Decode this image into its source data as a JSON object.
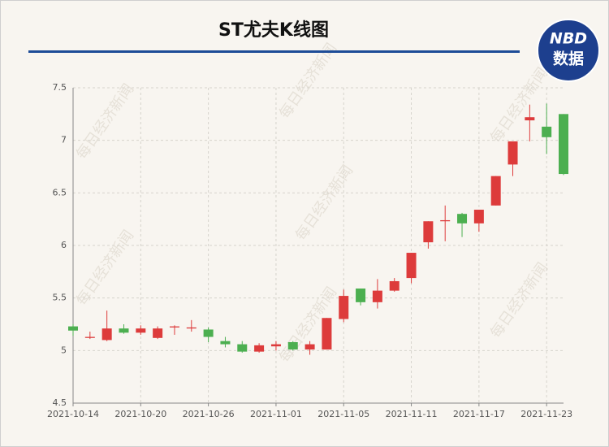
{
  "chart_data": {
    "type": "candlestick",
    "title": "ST尤夫K线图",
    "logo": {
      "top": "NBD",
      "bottom": "数据"
    },
    "watermark": "每日经济新闻",
    "categories": [
      "2021-10-14",
      null,
      null,
      null,
      "2021-10-20",
      null,
      null,
      null,
      "2021-10-26",
      null,
      null,
      null,
      "2021-11-01",
      null,
      null,
      null,
      "2021-11-05",
      null,
      null,
      null,
      "2021-11-11",
      null,
      null,
      null,
      "2021-11-17",
      null,
      null,
      null,
      "2021-11-23",
      null
    ],
    "open": [
      5.23,
      5.12,
      5.1,
      5.21,
      5.17,
      5.12,
      5.22,
      5.21,
      5.2,
      5.09,
      5.06,
      4.99,
      5.04,
      5.08,
      5.01,
      5.01,
      5.3,
      5.59,
      5.46,
      5.57,
      5.69,
      6.03,
      6.23,
      6.3,
      6.21,
      6.38,
      6.77,
      7.19,
      7.13,
      7.25
    ],
    "close": [
      5.19,
      5.13,
      5.21,
      5.17,
      5.21,
      5.21,
      5.23,
      5.22,
      5.13,
      5.06,
      4.99,
      5.05,
      5.06,
      5.01,
      5.06,
      5.31,
      5.52,
      5.46,
      5.57,
      5.66,
      5.93,
      6.23,
      6.24,
      6.21,
      6.34,
      6.66,
      6.99,
      7.22,
      7.03,
      6.68
    ],
    "high": [
      5.25,
      5.18,
      5.38,
      5.25,
      5.24,
      5.23,
      5.24,
      5.29,
      5.22,
      5.13,
      5.09,
      5.07,
      5.09,
      5.09,
      5.09,
      5.31,
      5.58,
      5.59,
      5.68,
      5.69,
      5.93,
      6.23,
      6.38,
      6.31,
      6.34,
      6.66,
      6.99,
      7.34,
      7.35,
      7.25
    ],
    "low": [
      5.14,
      5.11,
      5.09,
      5.16,
      5.15,
      5.11,
      5.15,
      5.18,
      5.08,
      5.03,
      4.98,
      4.98,
      5.0,
      5.0,
      4.96,
      5.01,
      5.27,
      5.43,
      5.4,
      5.56,
      5.64,
      5.97,
      6.04,
      6.08,
      6.13,
      6.38,
      6.66,
      6.99,
      6.87,
      6.67
    ],
    "up_color": "#dd3b3b",
    "down_color": "#4caf50",
    "ylim": [
      4.5,
      7.5
    ],
    "yticks": [
      4.5,
      5,
      5.5,
      6,
      6.5,
      7,
      7.5
    ],
    "grid": true
  }
}
